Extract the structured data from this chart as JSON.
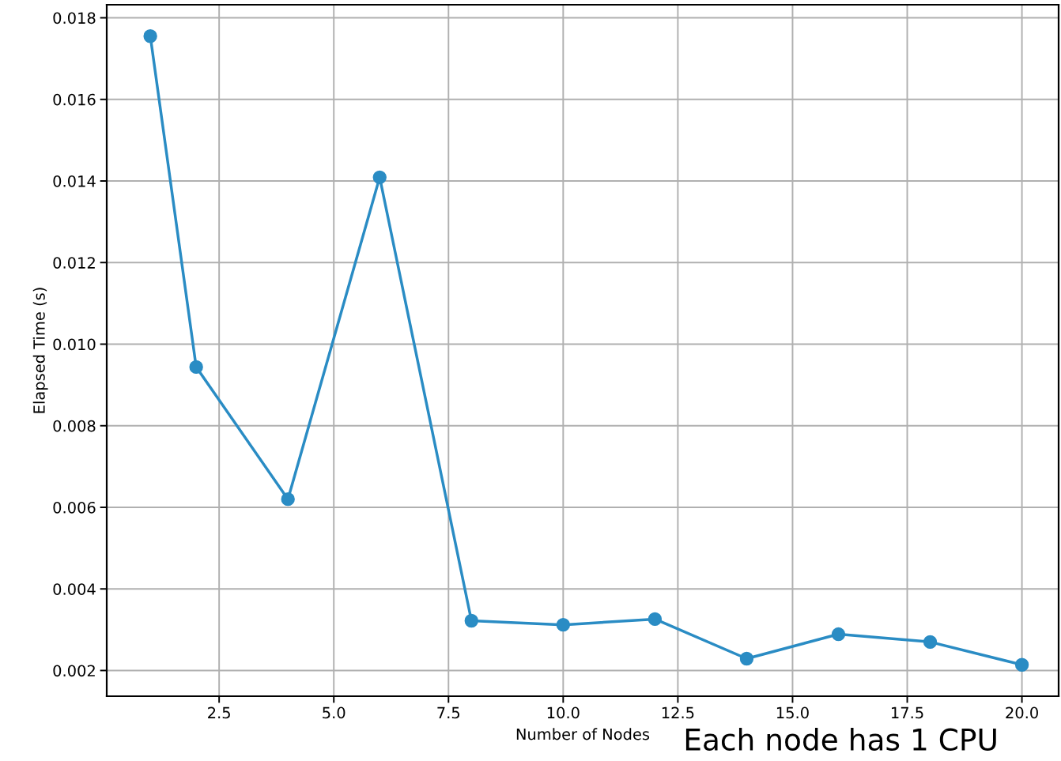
{
  "chart_data": {
    "type": "line",
    "xlabel": "Number of Nodes",
    "ylabel": "Elapsed Time (s)",
    "annotations": [
      "Each node has 1 CPU"
    ],
    "x": [
      1,
      2,
      4,
      6,
      8,
      10,
      12,
      14,
      16,
      18,
      20
    ],
    "series": [
      {
        "color": "#2a8cc4",
        "values": [
          0.01755,
          0.00944,
          0.0062,
          0.01409,
          0.00322,
          0.00312,
          0.00326,
          0.00229,
          0.00289,
          0.0027,
          0.00214
        ]
      }
    ],
    "xlim": [
      0.05,
      20.8
    ],
    "ylim": [
      0.00137,
      0.01832
    ],
    "xticks": [
      2.5,
      {
        "value": 5,
        "label": "5.0"
      },
      7.5,
      {
        "value": 10,
        "label": "10.0"
      },
      12.5,
      {
        "value": 15,
        "label": "15.0"
      },
      17.5,
      {
        "value": 20,
        "label": "20.0"
      }
    ],
    "yticks": [
      0.002,
      0.004,
      0.006,
      0.008,
      {
        "value": 0.01,
        "label": "0.010"
      },
      0.012,
      0.014,
      0.016,
      0.018
    ],
    "grid": true,
    "marker": "circle",
    "line_style": "solid"
  }
}
